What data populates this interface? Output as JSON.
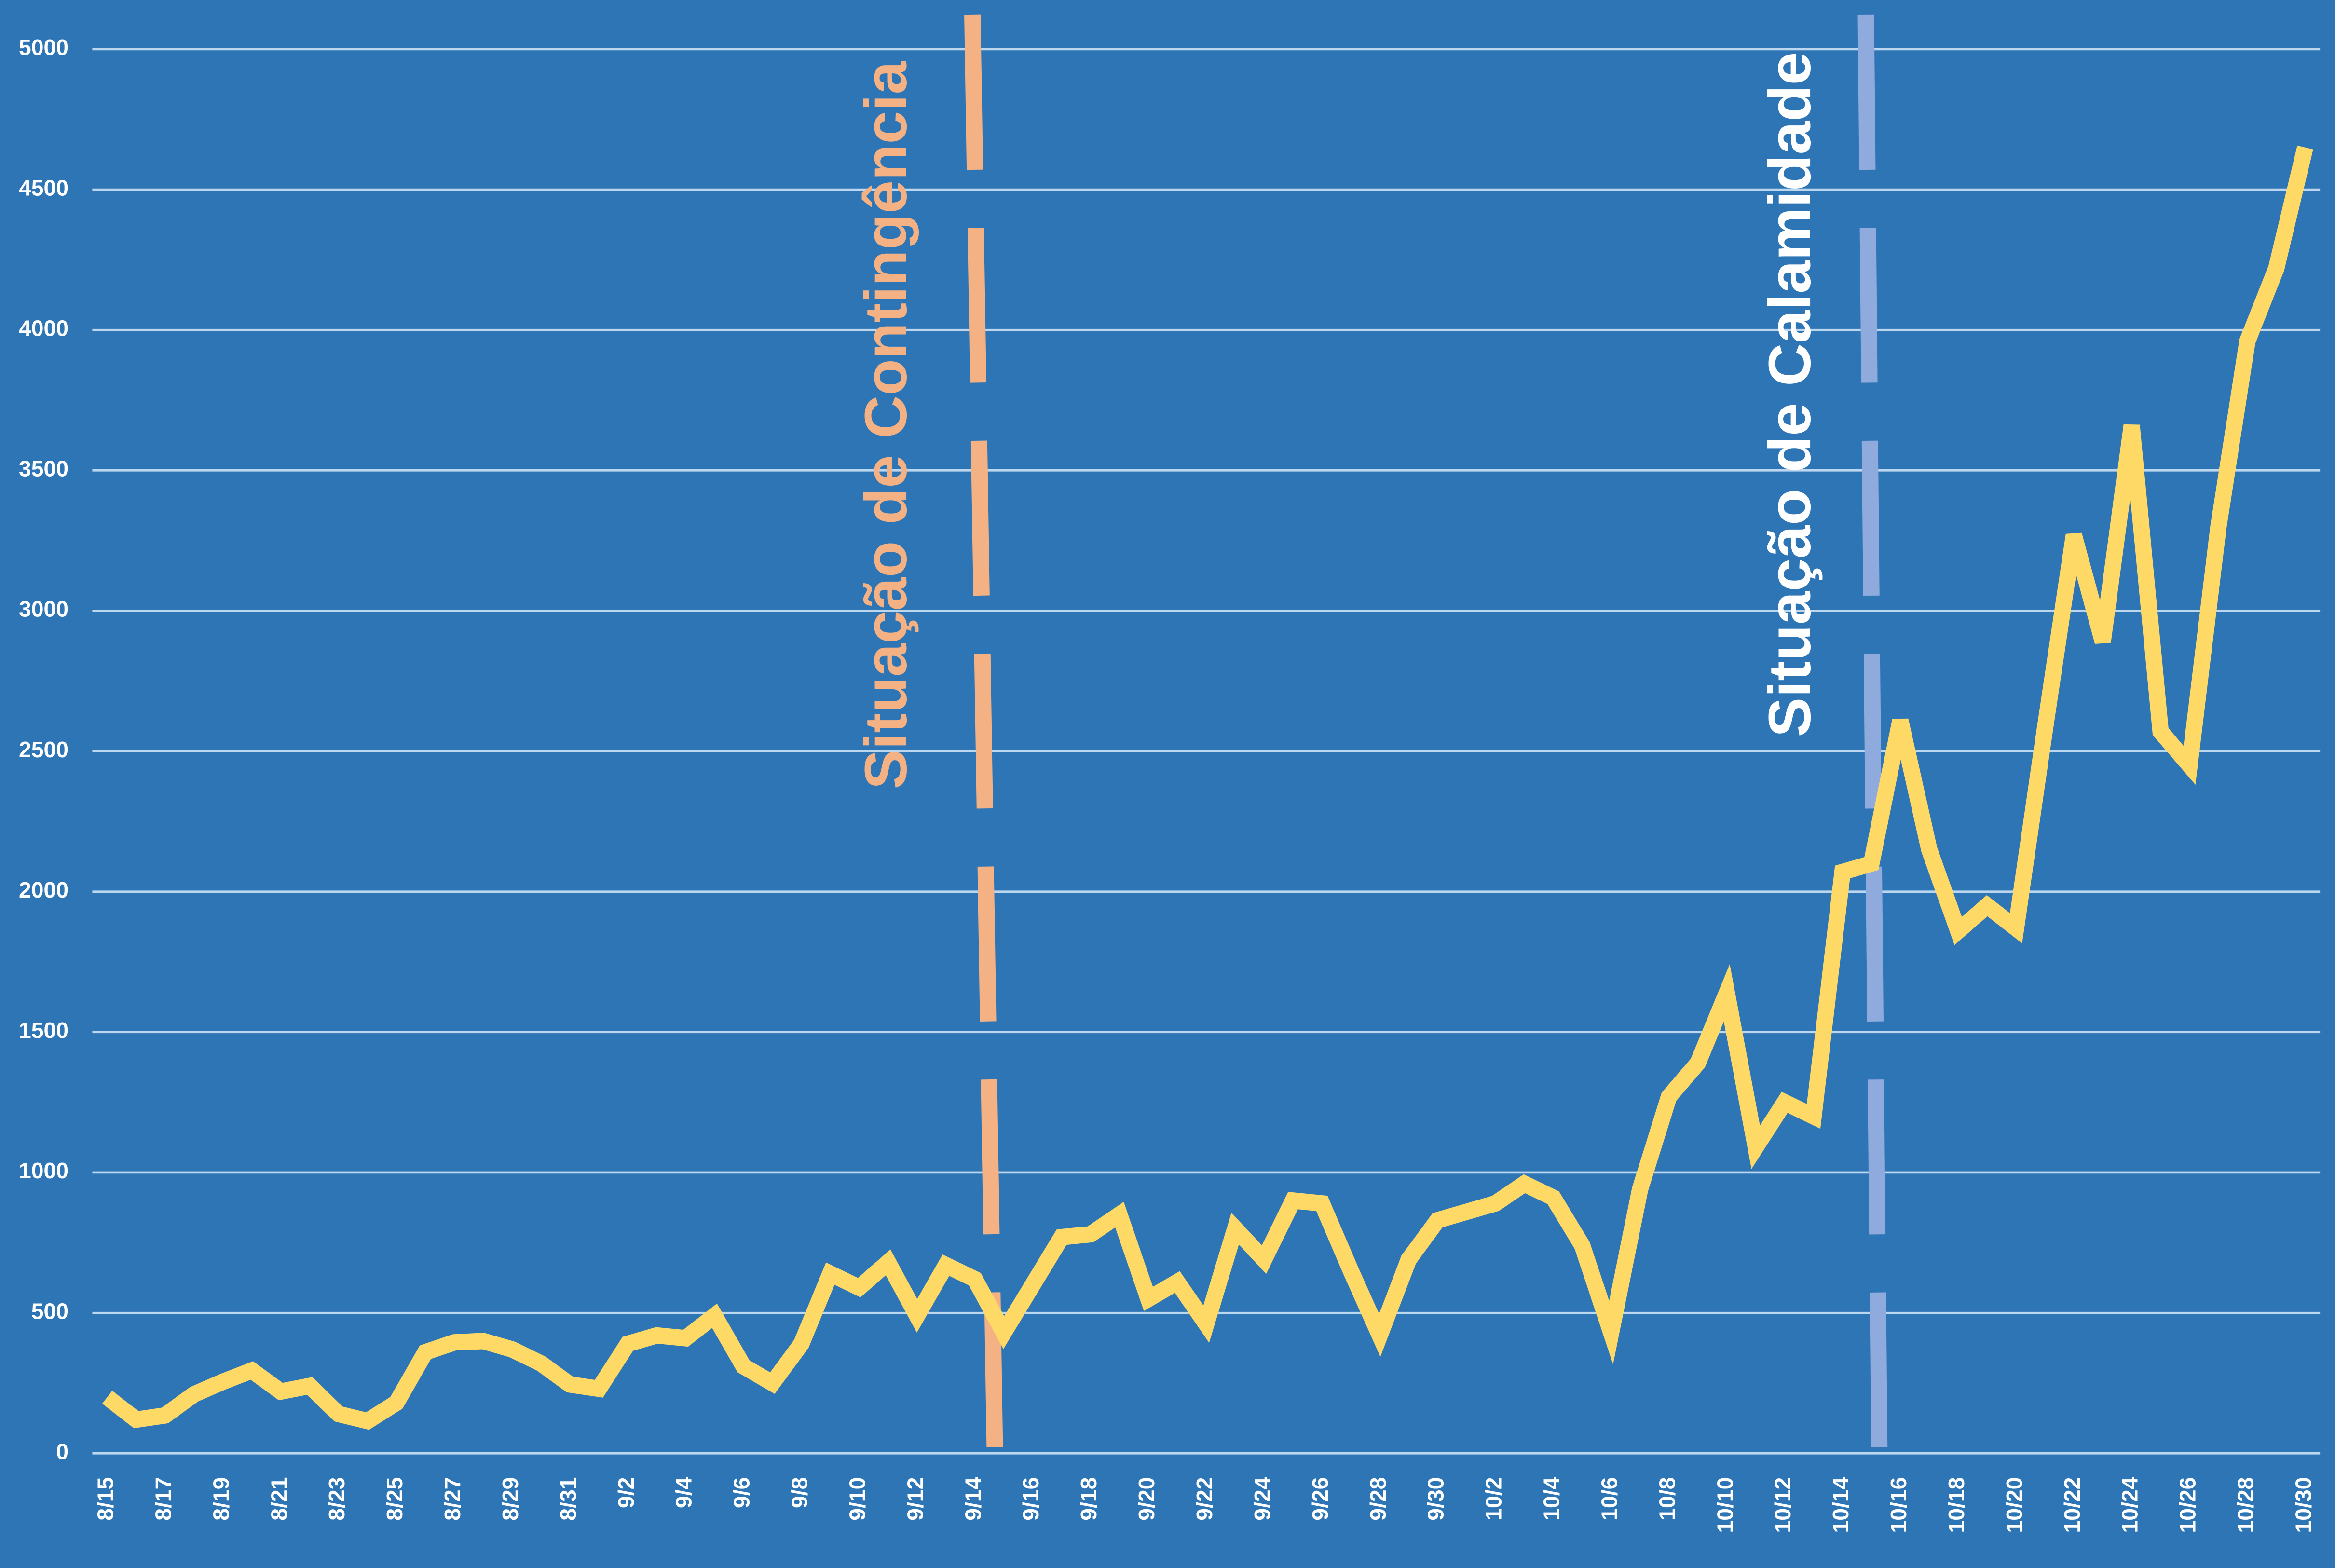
{
  "chart_data": {
    "type": "line",
    "categories": [
      "8/15",
      null,
      "8/17",
      null,
      "8/19",
      null,
      "8/21",
      null,
      "8/23",
      null,
      "8/25",
      null,
      "8/27",
      null,
      "8/29",
      null,
      "8/31",
      null,
      "9/2",
      null,
      "9/4",
      null,
      "9/6",
      null,
      "9/8",
      null,
      "9/10",
      null,
      "9/12",
      null,
      "9/14",
      null,
      "9/16",
      null,
      "9/18",
      null,
      "9/20",
      null,
      "9/22",
      null,
      "9/24",
      null,
      "9/26",
      null,
      "9/28",
      null,
      "9/30",
      null,
      "10/2",
      null,
      "10/4",
      null,
      "10/6",
      null,
      "10/8",
      null,
      "10/10",
      null,
      "10/12",
      null,
      "10/14",
      null,
      "10/16",
      null,
      "10/18",
      null,
      "10/20",
      null,
      "10/22",
      null,
      "10/24",
      null,
      "10/26",
      null,
      "10/28",
      null,
      "10/30"
    ],
    "values": [
      200,
      120,
      135,
      210,
      255,
      295,
      220,
      240,
      140,
      115,
      180,
      360,
      395,
      400,
      370,
      320,
      245,
      230,
      390,
      420,
      410,
      490,
      310,
      250,
      390,
      640,
      590,
      680,
      490,
      670,
      620,
      430,
      600,
      770,
      780,
      850,
      550,
      610,
      460,
      800,
      690,
      900,
      890,
      650,
      420,
      690,
      830,
      860,
      890,
      960,
      910,
      740,
      430,
      940,
      1270,
      1390,
      1640,
      1090,
      1250,
      1200,
      2070,
      2100,
      2610,
      2150,
      1860,
      1950,
      1870,
      2580,
      3270,
      2890,
      3660,
      2570,
      2450,
      3300,
      3960,
      4220,
      4650
    ],
    "color": "#ffd966",
    "ylim": [
      0,
      5000
    ],
    "yticks": [
      0,
      500,
      1000,
      1500,
      2000,
      2500,
      3000,
      3500,
      4000,
      4500,
      5000
    ],
    "grid": true,
    "annotations": [
      {
        "text": "Situação de Contingência",
        "color": "#f4b183"
      },
      {
        "text": "Situação de Calamidade",
        "color": "#8faadc",
        "text_color": "#ffffff"
      }
    ]
  }
}
